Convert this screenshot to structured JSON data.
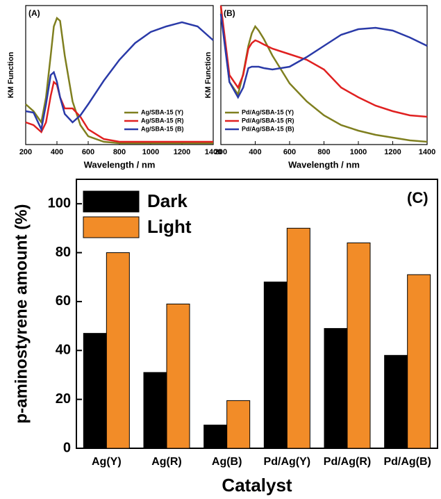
{
  "chart_data": [
    {
      "type": "line",
      "label": "(A)",
      "ylabel": "KM Function",
      "xlabel": "Wavelength / nm",
      "x": [
        200,
        250,
        300,
        330,
        360,
        380,
        400,
        420,
        450,
        500,
        550,
        600,
        700,
        800,
        900,
        1000,
        1100,
        1200,
        1300,
        1400
      ],
      "xlim": [
        200,
        1400
      ],
      "xticks": [
        200,
        400,
        600,
        800,
        1000,
        1200,
        1400
      ],
      "ylim": [
        0,
        100
      ],
      "legend": "lower right",
      "series": [
        {
          "name": "Ag/SBA-15 (Y)",
          "color": "#7f7f1f",
          "values": [
            29,
            24,
            16,
            34,
            64,
            85,
            91,
            89,
            64,
            31,
            14,
            6,
            2,
            1,
            1,
            1,
            1,
            1,
            1,
            1
          ]
        },
        {
          "name": "Ag/SBA-15 (R)",
          "color": "#e02020",
          "values": [
            16,
            14,
            9,
            16,
            35,
            45,
            43,
            34,
            26,
            26,
            20,
            11,
            4,
            2,
            2,
            2,
            2,
            2,
            2,
            2
          ]
        },
        {
          "name": "Ag/SBA-15 (B)",
          "color": "#2a3aa8",
          "values": [
            24,
            23,
            11,
            29,
            50,
            52,
            45,
            34,
            22,
            16,
            21,
            29,
            46,
            61,
            73,
            81,
            85,
            88,
            85,
            75
          ]
        }
      ]
    },
    {
      "type": "line",
      "label": "(B)",
      "ylabel": "KM Function",
      "xlabel": "Wavelength / nm",
      "x": [
        200,
        250,
        300,
        330,
        360,
        380,
        400,
        420,
        450,
        500,
        550,
        600,
        700,
        800,
        900,
        1000,
        1100,
        1200,
        1300,
        1400
      ],
      "xlim": [
        200,
        1400
      ],
      "xticks": [
        200,
        400,
        600,
        800,
        1000,
        1200,
        1400
      ],
      "ylim": [
        0,
        100
      ],
      "legend": "lower left",
      "series": [
        {
          "name": "Pd/Ag/SBA-15 (Y)",
          "color": "#7f7f1f",
          "values": [
            99,
            45,
            36,
            51,
            71,
            80,
            85,
            82,
            76,
            64,
            54,
            44,
            31,
            21,
            14,
            10,
            7,
            5,
            3,
            2
          ]
        },
        {
          "name": "Pd/Ag/SBA-15 (R)",
          "color": "#e02020",
          "values": [
            100,
            50,
            41,
            50,
            69,
            73,
            75,
            74,
            72,
            69,
            67,
            65,
            61,
            54,
            41,
            34,
            28,
            24,
            21,
            20
          ]
        },
        {
          "name": "Pd/Ag/SBA-15 (B)",
          "color": "#2a3aa8",
          "values": [
            94,
            45,
            34,
            41,
            55,
            56,
            56,
            56,
            55,
            54,
            55,
            56,
            63,
            71,
            79,
            83,
            84,
            82,
            77,
            71
          ]
        }
      ]
    },
    {
      "type": "bar",
      "label": "(C)",
      "ylabel": "p-aminostyrene amount (%)",
      "xlabel": "Catalyst",
      "categories": [
        "Ag(Y)",
        "Ag(R)",
        "Ag(B)",
        "Pd/Ag(Y)",
        "Pd/Ag(R)",
        "Pd/Ag(B)"
      ],
      "ylim": [
        0,
        110
      ],
      "yticks": [
        0,
        20,
        40,
        60,
        80,
        100
      ],
      "legend": "upper left",
      "series": [
        {
          "name": "Dark",
          "color": "#000000",
          "values": [
            47,
            31,
            9.5,
            68,
            49,
            38
          ]
        },
        {
          "name": "Light",
          "color": "#f28c28",
          "values": [
            80,
            59,
            19.5,
            90,
            84,
            71
          ]
        }
      ]
    }
  ]
}
